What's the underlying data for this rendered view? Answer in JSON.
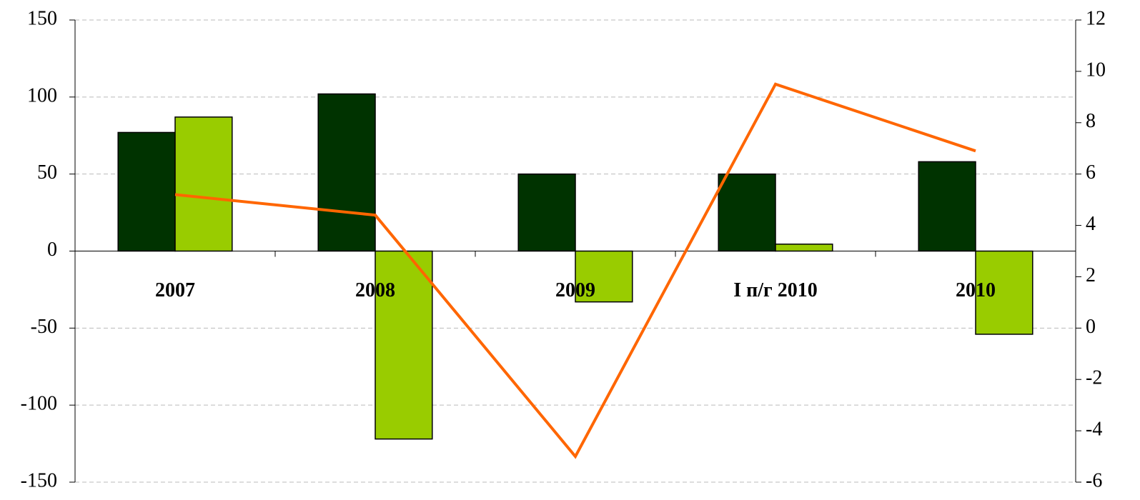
{
  "chart_data": {
    "type": "bar",
    "categories": [
      "2007",
      "2008",
      "2009",
      "I п/г 2010",
      "2010"
    ],
    "series": [
      {
        "color": "#003300",
        "values": [
          77,
          102,
          50,
          50,
          58
        ]
      },
      {
        "color": "#99cc00",
        "values": [
          87,
          -122,
          -33,
          4.5,
          -54
        ]
      },
      {
        "type": "line",
        "axis": "y2",
        "color": "#ff6600",
        "values": [
          5.2,
          4.4,
          -5,
          9.5,
          6.9
        ]
      }
    ],
    "ylim": [
      -150,
      150
    ],
    "yticks": [
      -150,
      -100,
      -50,
      0,
      50,
      100,
      150
    ],
    "y2lim": [
      -6,
      12
    ],
    "y2ticks": [
      -6,
      -4,
      -2,
      0,
      2,
      4,
      6,
      8,
      10,
      12
    ],
    "grid": true
  }
}
